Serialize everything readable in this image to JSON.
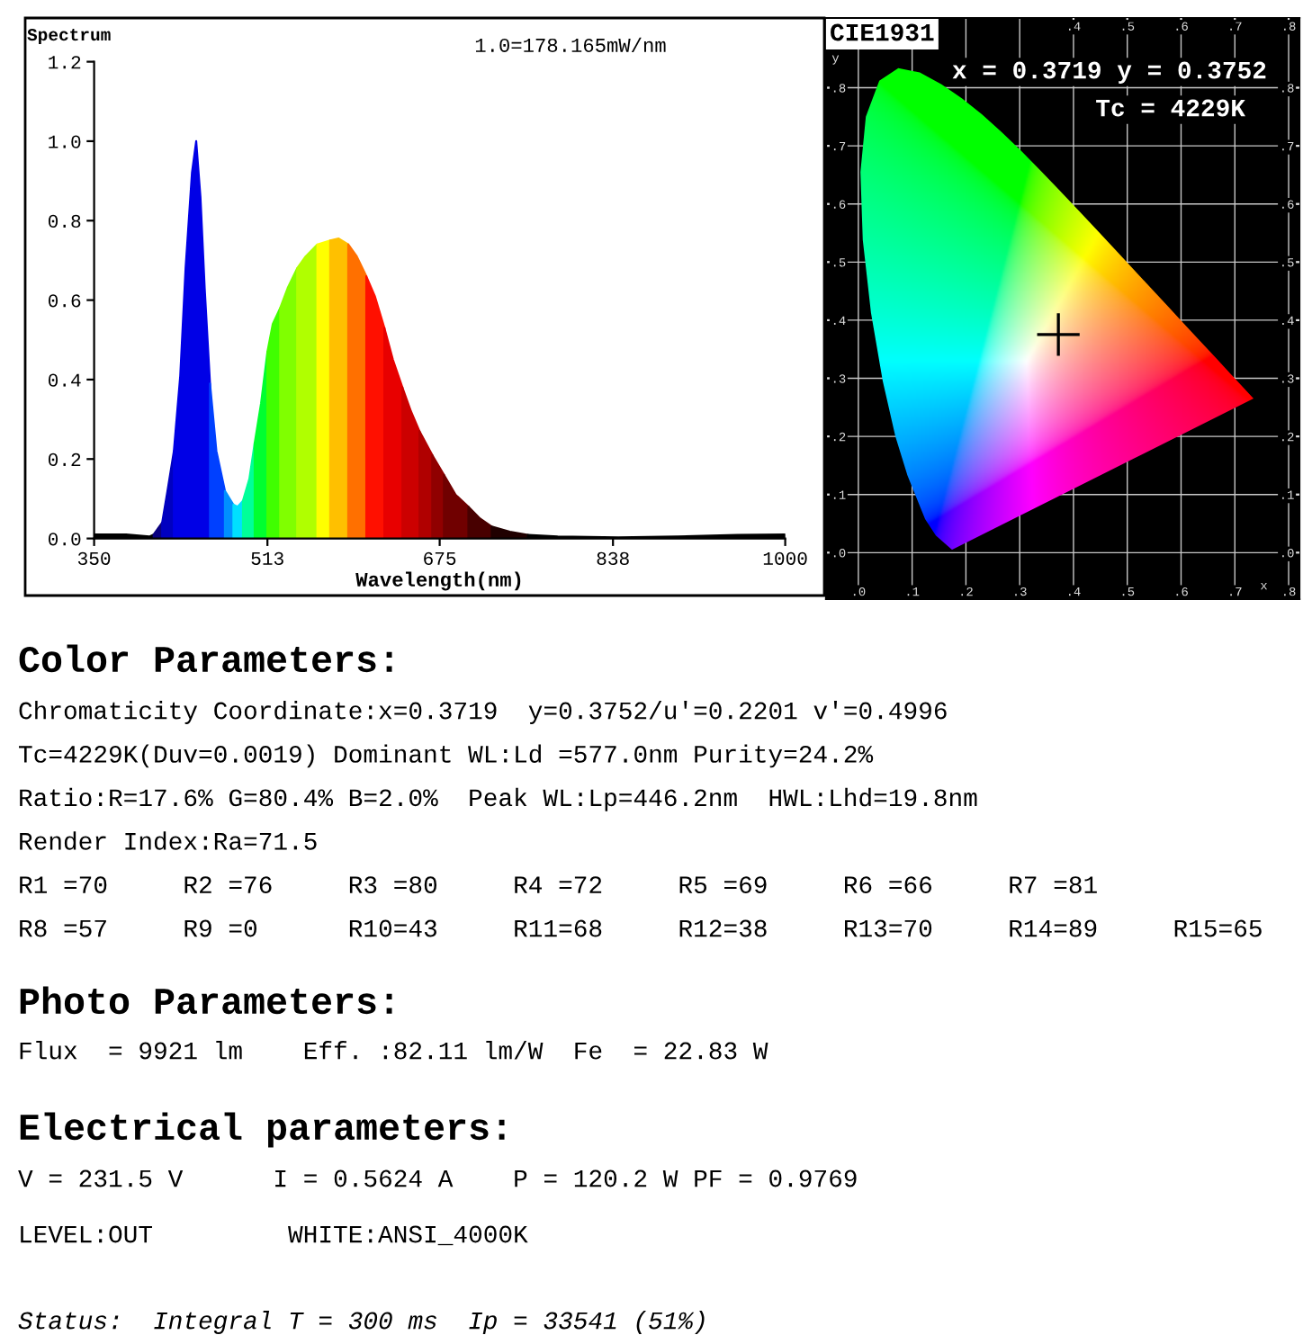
{
  "chart_data": [
    {
      "type": "area",
      "title": "Spectrum",
      "annotations": [
        "1.0=178.165mW/nm"
      ],
      "xlabel": "Wavelength(nm)",
      "xlim": [
        350,
        1000
      ],
      "xticks": [
        350,
        513,
        675,
        838,
        1000
      ],
      "ylim": [
        0,
        1.2
      ],
      "yticks": [
        {
          "value": 0,
          "label": "0.0"
        },
        {
          "value": 0.2,
          "label": "0.2"
        },
        {
          "value": 0.4,
          "label": "0.4"
        },
        {
          "value": 0.6,
          "label": "0.6"
        },
        {
          "value": 0.8,
          "label": "0.8"
        },
        {
          "value": 1.0,
          "label": "1.0"
        },
        {
          "value": 1.2,
          "label": "1.2"
        }
      ],
      "series": [
        {
          "color": "#000000",
          "x": [
            350,
            380,
            402,
            406
          ],
          "values": [
            0.01,
            0.01,
            0.005,
            0.01
          ]
        },
        {
          "color": "#0a0080",
          "x": [
            406,
            414
          ],
          "values": [
            0.01,
            0.04
          ]
        },
        {
          "color": "#0000c0",
          "x": [
            414,
            419,
            425
          ],
          "values": [
            0.04,
            0.12,
            0.22
          ]
        },
        {
          "color": "#0000e6",
          "x": [
            425,
            431,
            436,
            442,
            446,
            450,
            454,
            459
          ],
          "values": [
            0.22,
            0.41,
            0.68,
            0.92,
            1.0,
            0.86,
            0.63,
            0.39
          ]
        },
        {
          "color": "#0040ff",
          "x": [
            459,
            465,
            473
          ],
          "values": [
            0.39,
            0.22,
            0.12
          ]
        },
        {
          "color": "#0090ff",
          "x": [
            473,
            481
          ],
          "values": [
            0.12,
            0.085
          ]
        },
        {
          "color": "#00e0ff",
          "x": [
            481,
            485,
            490
          ],
          "values": [
            0.085,
            0.08,
            0.095
          ]
        },
        {
          "color": "#00ff99",
          "x": [
            490,
            496,
            501
          ],
          "values": [
            0.095,
            0.15,
            0.24
          ]
        },
        {
          "color": "#00ff30",
          "x": [
            501,
            507,
            513
          ],
          "values": [
            0.24,
            0.34,
            0.47
          ]
        },
        {
          "color": "#40ff00",
          "x": [
            513,
            518,
            525
          ],
          "values": [
            0.47,
            0.54,
            0.58
          ]
        },
        {
          "color": "#80ff00",
          "x": [
            525,
            532,
            541
          ],
          "values": [
            0.58,
            0.63,
            0.68
          ]
        },
        {
          "color": "#b0ff00",
          "x": [
            541,
            549,
            560
          ],
          "values": [
            0.68,
            0.71,
            0.74
          ]
        },
        {
          "color": "#ffff00",
          "x": [
            560,
            572
          ],
          "values": [
            0.74,
            0.75
          ]
        },
        {
          "color": "#ffc000",
          "x": [
            572,
            580,
            589
          ],
          "values": [
            0.75,
            0.755,
            0.74
          ]
        },
        {
          "color": "#ff7000",
          "x": [
            589,
            597,
            606
          ],
          "values": [
            0.74,
            0.71,
            0.66
          ]
        },
        {
          "color": "#ff1000",
          "x": [
            606,
            614,
            623
          ],
          "values": [
            0.66,
            0.61,
            0.53
          ]
        },
        {
          "color": "#e80000",
          "x": [
            623,
            631,
            640
          ],
          "values": [
            0.53,
            0.45,
            0.38
          ]
        },
        {
          "color": "#cc0000",
          "x": [
            640,
            648,
            656
          ],
          "values": [
            0.38,
            0.32,
            0.27
          ]
        },
        {
          "color": "#b00000",
          "x": [
            656,
            668
          ],
          "values": [
            0.27,
            0.21
          ]
        },
        {
          "color": "#900000",
          "x": [
            668,
            679
          ],
          "values": [
            0.21,
            0.16
          ]
        },
        {
          "color": "#700000",
          "x": [
            679,
            690,
            702
          ],
          "values": [
            0.16,
            0.11,
            0.08
          ]
        },
        {
          "color": "#480000",
          "x": [
            702,
            713,
            724
          ],
          "values": [
            0.08,
            0.05,
            0.03
          ]
        },
        {
          "color": "#200000",
          "x": [
            724,
            741,
            758
          ],
          "values": [
            0.03,
            0.017,
            0.009
          ]
        },
        {
          "color": "#000000",
          "x": [
            758,
            786,
            843,
            899,
            955,
            1000
          ],
          "values": [
            0.009,
            0.005,
            0.003,
            0.005,
            0.009,
            0.01
          ]
        }
      ]
    },
    {
      "type": "scatter",
      "title": "CIE1931",
      "annotations": [
        "x = 0.3719 y = 0.3752",
        "Tc = 4229K"
      ],
      "xlabel": "x",
      "ylabel": "y",
      "xlim": [
        -0.06,
        0.82
      ],
      "ylim": [
        -0.08,
        0.92
      ],
      "xticks": [
        {
          "value": 0,
          "label": ".0"
        },
        {
          "value": 0.1,
          "label": ".1"
        },
        {
          "value": 0.2,
          "label": ".2"
        },
        {
          "value": 0.3,
          "label": ".3"
        },
        {
          "value": 0.4,
          "label": ".4"
        },
        {
          "value": 0.5,
          "label": ".5"
        },
        {
          "value": 0.6,
          "label": ".6"
        },
        {
          "value": 0.7,
          "label": ".7"
        },
        {
          "value": 0.8,
          "label": ".8"
        }
      ],
      "yticks": [
        {
          "value": 0,
          "label": ".0"
        },
        {
          "value": 0.1,
          "label": ".1"
        },
        {
          "value": 0.2,
          "label": ".2"
        },
        {
          "value": 0.3,
          "label": ".3"
        },
        {
          "value": 0.4,
          "label": ".4"
        },
        {
          "value": 0.5,
          "label": ".5"
        },
        {
          "value": 0.6,
          "label": ".6"
        },
        {
          "value": 0.7,
          "label": ".7"
        },
        {
          "value": 0.8,
          "label": ".8"
        }
      ],
      "x2lim": [
        -0.06,
        0.82
      ],
      "x2ticks": [
        {
          "value": 0.4,
          "label": ".4"
        },
        {
          "value": 0.5,
          "label": ".5"
        },
        {
          "value": 0.6,
          "label": ".6"
        },
        {
          "value": 0.7,
          "label": ".7"
        },
        {
          "value": 0.8,
          "label": ".8"
        }
      ],
      "y2lim": [
        -0.08,
        0.92
      ],
      "y2ticks": [
        {
          "value": 0,
          "label": ".0"
        },
        {
          "value": 0.1,
          "label": ".1"
        },
        {
          "value": 0.2,
          "label": ".2"
        },
        {
          "value": 0.3,
          "label": ".3"
        },
        {
          "value": 0.4,
          "label": ".4"
        },
        {
          "value": 0.5,
          "label": ".5"
        },
        {
          "value": 0.6,
          "label": ".6"
        },
        {
          "value": 0.7,
          "label": ".7"
        },
        {
          "value": 0.8,
          "label": ".8"
        }
      ],
      "grid": true,
      "marker": "cross",
      "series": [
        {
          "x": [
            0.3719
          ],
          "values": [
            0.3752
          ],
          "color": "#000000"
        }
      ]
    },
    {
      "type": "other",
      "title": "Color Parameters:",
      "annotations": [
        "Chromaticity Coordinate:x=0.3719  y=0.3752/u'=0.2201 v'=0.4996",
        "Tc=4229K(Duv=0.0019) Dominant WL:Ld =577.0nm Purity=24.2%",
        "Ratio:R=17.6% G=80.4% B=2.0%  Peak WL:Lp=446.2nm  HWL:Lhd=19.8nm",
        "Render Index:Ra=71.5",
        "R1 =70     R2 =76     R3 =80     R4 =72     R5 =69     R6 =66     R7 =81",
        "R8 =57     R9 =0      R10=43     R11=68     R12=38     R13=70     R14=89     R15=65"
      ]
    },
    {
      "type": "other",
      "title": "Photo Parameters:",
      "annotations": [
        "Flux  = 9921 lm    Eff. :82.11 lm/W  Fe  = 22.83 W"
      ]
    },
    {
      "type": "other",
      "title": "Electrical parameters:",
      "annotations": [
        "V = 231.5 V      I = 0.5624 A    P = 120.2 W PF = 0.9769",
        "LEVEL:OUT         WHITE:ANSI_4000K"
      ]
    },
    {
      "type": "other",
      "annotations": [
        "Status:  Integral T = 300 ms  Ip = 33541 (51%)"
      ]
    }
  ]
}
